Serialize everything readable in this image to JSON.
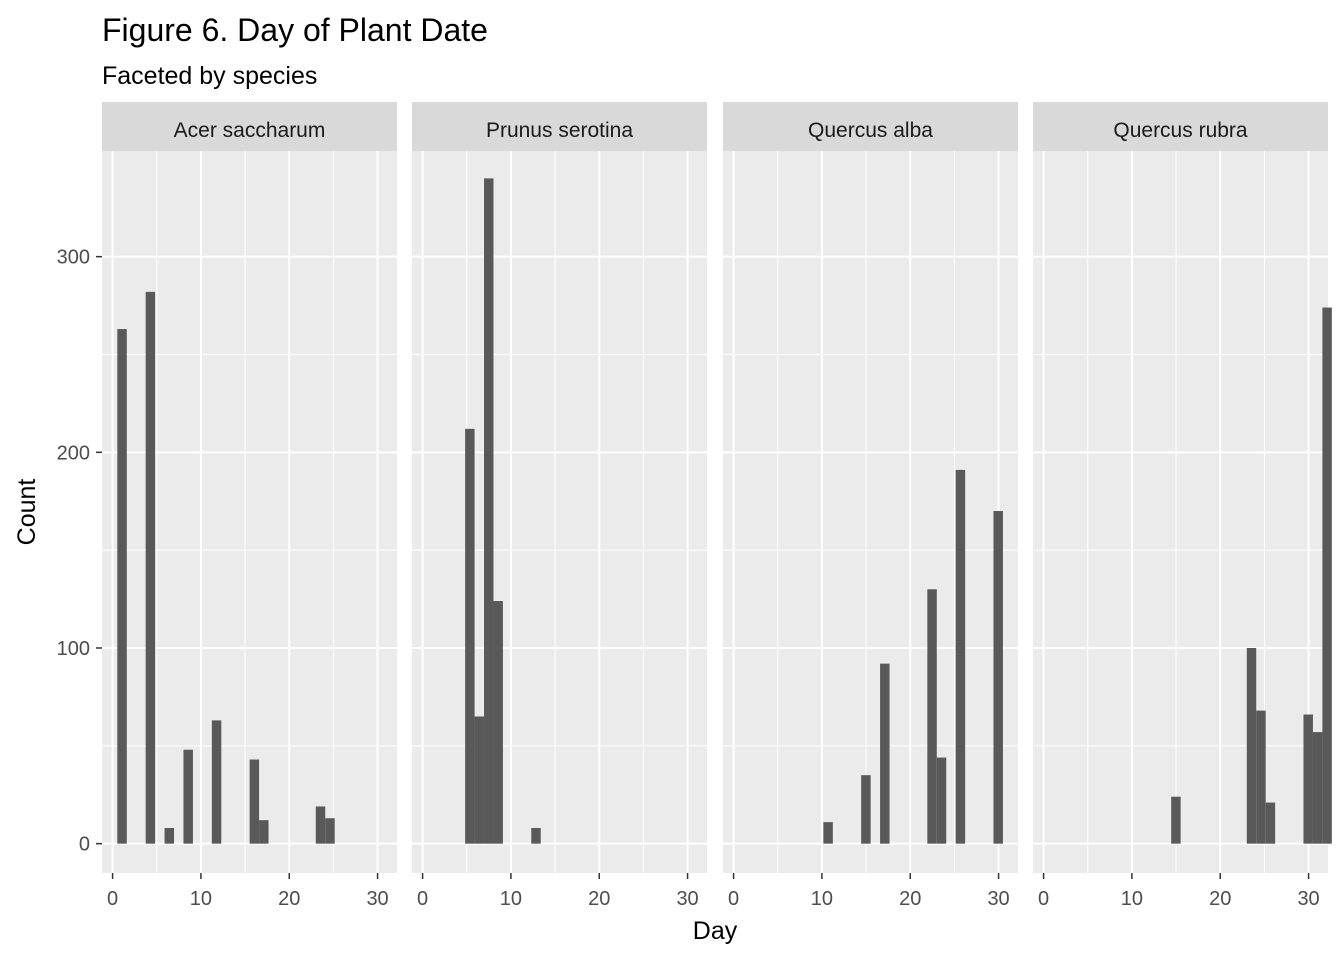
{
  "chart_data": {
    "type": "bar",
    "title": "Figure 6. Day of Plant Date",
    "subtitle": "Faceted by species",
    "xlabel": "Day",
    "ylabel": "Count",
    "xlim": [
      -1.2,
      32.2
    ],
    "ylim": [
      -15,
      354
    ],
    "x_ticks": [
      0,
      10,
      20,
      30
    ],
    "y_ticks": [
      0,
      100,
      200,
      300
    ],
    "bin_width": 1.07,
    "grid": true,
    "panel_color": "#ebebeb",
    "strip_color": "#d9d9d9",
    "bar_color": "#595959",
    "facets": [
      {
        "name": "Acer saccharum",
        "bins": [
          {
            "x": 1.07,
            "count": 263
          },
          {
            "x": 4.28,
            "count": 282
          },
          {
            "x": 6.42,
            "count": 8
          },
          {
            "x": 8.56,
            "count": 48
          },
          {
            "x": 11.77,
            "count": 63
          },
          {
            "x": 16.05,
            "count": 43
          },
          {
            "x": 17.12,
            "count": 12
          },
          {
            "x": 23.54,
            "count": 19
          },
          {
            "x": 24.61,
            "count": 13
          }
        ]
      },
      {
        "name": "Prunus serotina",
        "bins": [
          {
            "x": 5.35,
            "count": 212
          },
          {
            "x": 6.42,
            "count": 65
          },
          {
            "x": 7.49,
            "count": 340
          },
          {
            "x": 8.56,
            "count": 124
          },
          {
            "x": 12.84,
            "count": 8
          }
        ]
      },
      {
        "name": "Quercus alba",
        "bins": [
          {
            "x": 10.7,
            "count": 11
          },
          {
            "x": 14.98,
            "count": 35
          },
          {
            "x": 17.12,
            "count": 92
          },
          {
            "x": 22.47,
            "count": 130
          },
          {
            "x": 23.54,
            "count": 44
          },
          {
            "x": 25.68,
            "count": 191
          },
          {
            "x": 29.96,
            "count": 170
          }
        ]
      },
      {
        "name": "Quercus rubra",
        "bins": [
          {
            "x": 14.98,
            "count": 24
          },
          {
            "x": 23.54,
            "count": 100
          },
          {
            "x": 24.61,
            "count": 68
          },
          {
            "x": 25.68,
            "count": 21
          },
          {
            "x": 29.96,
            "count": 66
          },
          {
            "x": 31.03,
            "count": 57
          },
          {
            "x": 32.1,
            "count": 274
          }
        ]
      }
    ]
  }
}
